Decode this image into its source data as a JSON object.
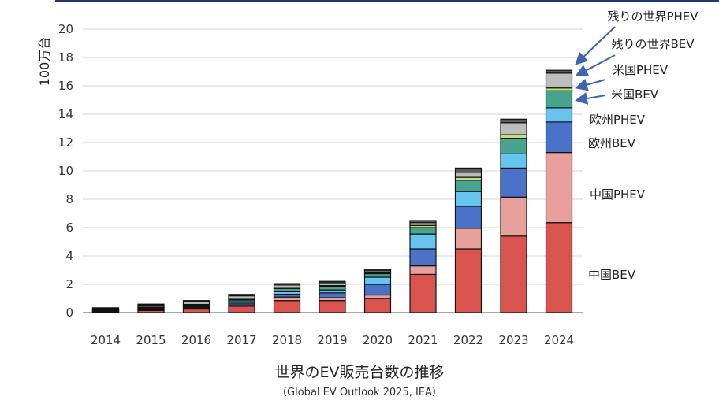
{
  "chart_data": {
    "type": "bar",
    "stacked": true,
    "ylabel": "100万台",
    "ylim": [
      0,
      20
    ],
    "yticks": [
      0,
      2,
      4,
      6,
      8,
      10,
      12,
      14,
      16,
      18,
      20
    ],
    "grid": true,
    "categories": [
      "2014",
      "2015",
      "2016",
      "2017",
      "2018",
      "2019",
      "2020",
      "2021",
      "2022",
      "2023",
      "2024"
    ],
    "series": [
      {
        "name": "中国BEV",
        "color": "#d9534f",
        "values": [
          0.05,
          0.15,
          0.25,
          0.45,
          0.85,
          0.85,
          1.0,
          2.7,
          4.5,
          5.4,
          6.35
        ]
      },
      {
        "name": "中国PHEV",
        "color": "#e8a09c",
        "values": [
          0.02,
          0.05,
          0.07,
          0.1,
          0.25,
          0.2,
          0.25,
          0.6,
          1.45,
          2.75,
          4.95
        ]
      },
      {
        "name": "欧州BEV",
        "color": "#4a72c9",
        "values": [
          0.03,
          0.05,
          0.07,
          0.12,
          0.2,
          0.35,
          0.75,
          1.2,
          1.55,
          2.05,
          2.15
        ]
      },
      {
        "name": "欧州PHEV",
        "color": "#66c4ee",
        "values": [
          0.02,
          0.05,
          0.07,
          0.1,
          0.18,
          0.2,
          0.5,
          1.05,
          1.05,
          1.0,
          1.0
        ]
      },
      {
        "name": "米国BEV",
        "color": "#48a38f",
        "values": [
          0.05,
          0.06,
          0.08,
          0.12,
          0.22,
          0.25,
          0.25,
          0.45,
          0.8,
          1.1,
          1.2
        ]
      },
      {
        "name": "米国PHEV",
        "color": "#bfe07a",
        "values": [
          0.02,
          0.03,
          0.04,
          0.05,
          0.1,
          0.06,
          0.05,
          0.15,
          0.2,
          0.25,
          0.2
        ]
      },
      {
        "name": "残りの世界BEV",
        "color": "#bdbdbd",
        "values": [
          0.1,
          0.15,
          0.2,
          0.25,
          0.15,
          0.2,
          0.15,
          0.2,
          0.35,
          0.85,
          1.05
        ]
      },
      {
        "name": "残りの世界PHEV",
        "color": "#5a5a5a",
        "values": [
          0.05,
          0.06,
          0.07,
          0.1,
          0.1,
          0.1,
          0.1,
          0.15,
          0.3,
          0.25,
          0.2
        ]
      }
    ],
    "legend_position": "right",
    "title": "世界のEV販売台数の推移",
    "source": "（Global EV Outlook 2025, IEA）"
  }
}
